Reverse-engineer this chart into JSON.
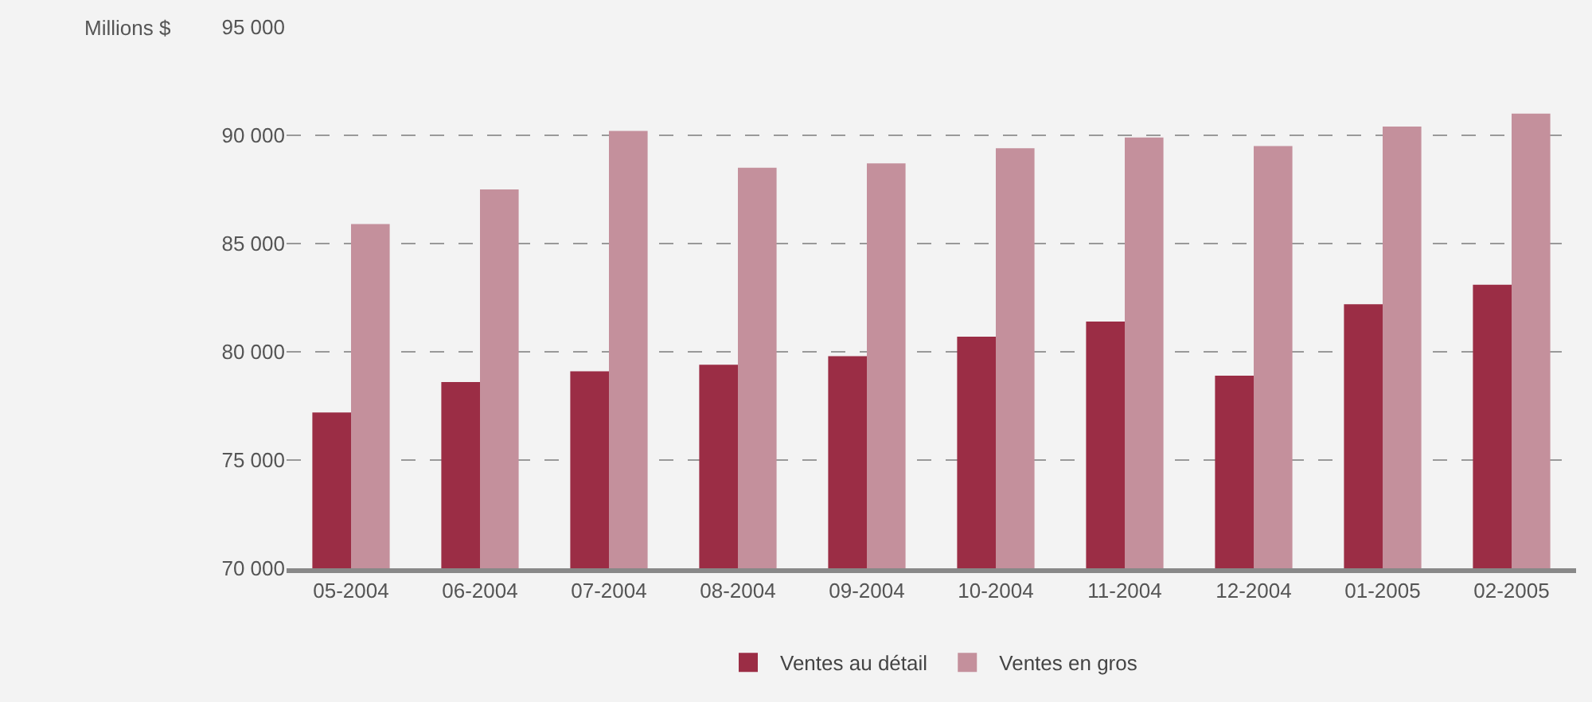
{
  "chart_data": {
    "type": "bar",
    "ylabel": "Millions $",
    "categories": [
      "05-2004",
      "06-2004",
      "07-2004",
      "08-2004",
      "09-2004",
      "10-2004",
      "11-2004",
      "12-2004",
      "01-2005",
      "02-2005"
    ],
    "series": [
      {
        "name": "Ventes au détail",
        "color": "#9b2d45",
        "values": [
          77200,
          78600,
          79100,
          79400,
          79800,
          80700,
          81400,
          78900,
          82200,
          83100
        ]
      },
      {
        "name": "Ventes en gros",
        "color": "#c4909c",
        "values": [
          85900,
          87500,
          90200,
          88500,
          88700,
          89400,
          89900,
          89500,
          90400,
          91000
        ]
      }
    ],
    "ylim": [
      70000,
      95000
    ],
    "yticks": [
      {
        "value": 70000,
        "label": "70 000"
      },
      {
        "value": 75000,
        "label": "75 000"
      },
      {
        "value": 80000,
        "label": "80 000"
      },
      {
        "value": 85000,
        "label": "85 000"
      },
      {
        "value": 90000,
        "label": "90 000"
      },
      {
        "value": 95000,
        "label": "95 000"
      }
    ],
    "grid": "y",
    "legend": "bottom"
  }
}
